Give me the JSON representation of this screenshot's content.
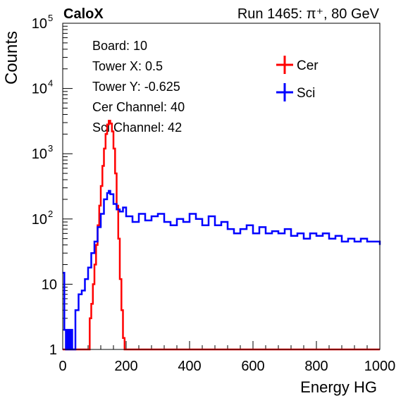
{
  "header": {
    "left": "CaloX",
    "right": "Run 1465:   π⁺, 80 GeV"
  },
  "info_box": {
    "lines": [
      "Board: 10",
      "Tower X: 0.5",
      "Tower Y: -0.625",
      "Cer Channel: 40",
      "Sci Channel: 42"
    ]
  },
  "colors": {
    "cer": "#ff0000",
    "sci": "#0000ff"
  },
  "chart_data": {
    "type": "line",
    "xlabel": "Energy HG",
    "ylabel": "Counts",
    "xlim": [
      0,
      1000
    ],
    "ylim": [
      1,
      100000
    ],
    "yscale": "log",
    "x_ticks": [
      "0",
      "200",
      "400",
      "600",
      "800",
      "1000"
    ],
    "y_ticks": [
      {
        "value": 1,
        "label": "1"
      },
      {
        "value": 10,
        "label": "10"
      },
      {
        "value": 100,
        "label": "10",
        "sup": "2"
      },
      {
        "value": 1000,
        "label": "10",
        "sup": "3"
      },
      {
        "value": 10000,
        "label": "10",
        "sup": "4"
      },
      {
        "value": 100000,
        "label": "10",
        "sup": "5"
      }
    ],
    "legend_position": "top-right",
    "series": [
      {
        "name": "Cer",
        "color": "#ff0000",
        "x": [
          0,
          80,
          85,
          90,
          95,
          100,
          105,
          110,
          115,
          120,
          125,
          130,
          135,
          140,
          145,
          150,
          155,
          160,
          165,
          170,
          175,
          180,
          185,
          190,
          195,
          200,
          210,
          220,
          240,
          300,
          400,
          500,
          600,
          700,
          800,
          900,
          1000
        ],
        "y": [
          1,
          1,
          3,
          5,
          10,
          20,
          40,
          80,
          160,
          320,
          650,
          1200,
          2000,
          2800,
          3200,
          2900,
          2200,
          1200,
          500,
          160,
          50,
          12,
          4,
          1.5,
          1,
          1,
          1,
          1,
          1,
          1,
          1,
          1,
          1,
          1,
          1,
          1,
          1
        ]
      },
      {
        "name": "Sci",
        "color": "#0000ff",
        "x": [
          0,
          5,
          10,
          15,
          20,
          25,
          30,
          40,
          50,
          60,
          70,
          80,
          90,
          100,
          110,
          120,
          130,
          140,
          145,
          150,
          160,
          170,
          180,
          190,
          200,
          220,
          240,
          260,
          280,
          300,
          320,
          340,
          360,
          380,
          400,
          420,
          440,
          460,
          480,
          500,
          520,
          540,
          560,
          580,
          600,
          620,
          640,
          660,
          680,
          700,
          720,
          740,
          760,
          780,
          800,
          820,
          840,
          860,
          880,
          900,
          920,
          940,
          960,
          980,
          1000
        ],
        "y": [
          15,
          2,
          1,
          2,
          1,
          2,
          1,
          4,
          7,
          8,
          12,
          18,
          30,
          45,
          75,
          120,
          200,
          250,
          270,
          240,
          170,
          140,
          130,
          150,
          110,
          90,
          120,
          95,
          110,
          120,
          90,
          80,
          100,
          90,
          120,
          100,
          80,
          110,
          80,
          90,
          70,
          60,
          70,
          80,
          60,
          75,
          60,
          65,
          60,
          70,
          55,
          60,
          50,
          60,
          55,
          60,
          50,
          55,
          45,
          50,
          45,
          50,
          45,
          45,
          40
        ]
      }
    ]
  }
}
